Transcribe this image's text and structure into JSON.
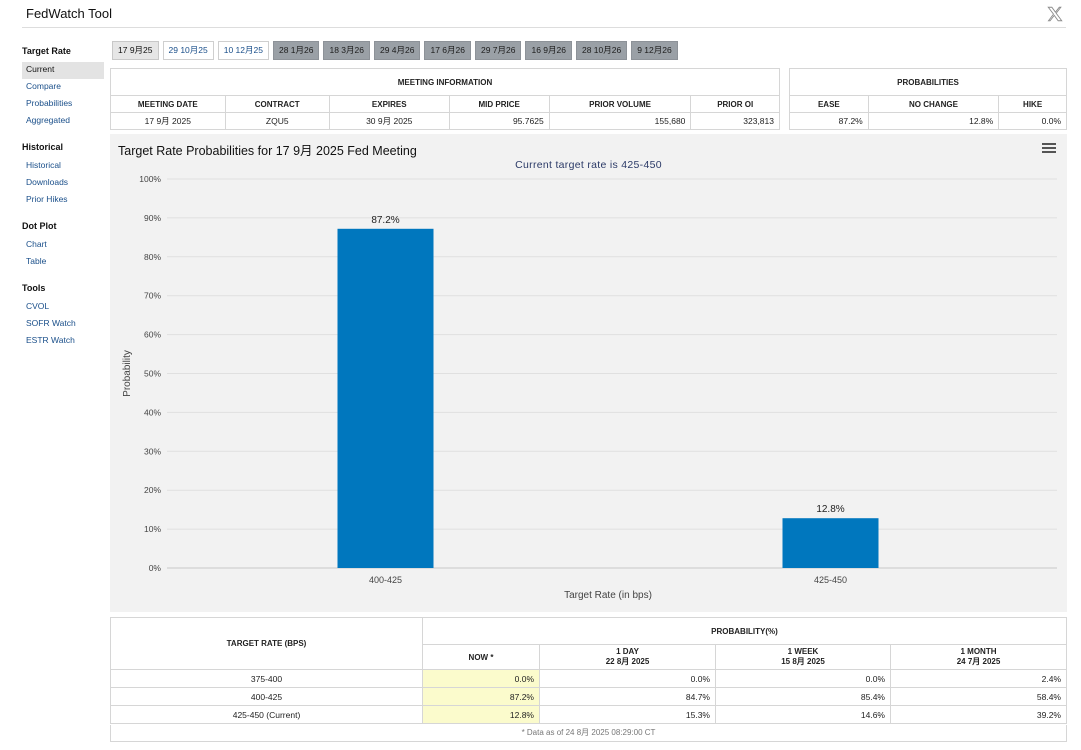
{
  "app": {
    "title": "FedWatch Tool"
  },
  "sidebar": {
    "groups": [
      {
        "heading": "Target Rate",
        "items": [
          "Current",
          "Compare",
          "Probabilities",
          "Aggregated"
        ]
      },
      {
        "heading": "Historical",
        "items": [
          "Historical",
          "Downloads",
          "Prior Hikes"
        ]
      },
      {
        "heading": "Dot Plot",
        "items": [
          "Chart",
          "Table"
        ]
      },
      {
        "heading": "Tools",
        "items": [
          "CVOL",
          "SOFR Watch",
          "ESTR Watch"
        ]
      }
    ],
    "active_item": "Current"
  },
  "meeting_tabs": [
    {
      "label": "17 9月25",
      "state": "selected"
    },
    {
      "label": "29 10月25",
      "state": "open"
    },
    {
      "label": "10 12月25",
      "state": "open"
    },
    {
      "label": "28 1月26",
      "state": "disabled"
    },
    {
      "label": "18 3月26",
      "state": "disabled"
    },
    {
      "label": "29 4月26",
      "state": "disabled"
    },
    {
      "label": "17 6月26",
      "state": "disabled"
    },
    {
      "label": "29 7月26",
      "state": "disabled"
    },
    {
      "label": "16 9月26",
      "state": "disabled"
    },
    {
      "label": "28 10月26",
      "state": "disabled"
    },
    {
      "label": "9 12月26",
      "state": "disabled"
    }
  ],
  "meeting_info": {
    "heading": "MEETING INFORMATION",
    "columns": [
      "MEETING DATE",
      "CONTRACT",
      "EXPIRES",
      "MID PRICE",
      "PRIOR VOLUME",
      "PRIOR OI"
    ],
    "row": [
      "17 9月 2025",
      "ZQU5",
      "30 9月 2025",
      "95.7625",
      "155,680",
      "323,813"
    ]
  },
  "probabilities": {
    "heading": "PROBABILITIES",
    "columns": [
      "EASE",
      "NO CHANGE",
      "HIKE"
    ],
    "row": [
      "87.2%",
      "12.8%",
      "0.0%"
    ]
  },
  "chart": {
    "title": "Target Rate Probabilities for 17 9月 2025 Fed Meeting",
    "subtitle": "Current target rate is 425-450",
    "bar_color": "#0077be"
  },
  "chart_data": {
    "type": "bar",
    "title": "Target Rate Probabilities for 17 9月 2025 Fed Meeting",
    "subtitle": "Current target rate is 425-450",
    "categories": [
      "400-425",
      "425-450"
    ],
    "values": [
      87.2,
      12.8
    ],
    "value_labels": [
      "87.2%",
      "12.8%"
    ],
    "xlabel": "Target Rate (in bps)",
    "ylabel": "Probability",
    "ylim": [
      0,
      100
    ],
    "yticks": [
      "0%",
      "10%",
      "20%",
      "30%",
      "40%",
      "50%",
      "60%",
      "70%",
      "80%",
      "90%",
      "100%"
    ],
    "grid": true,
    "legend": "none"
  },
  "prob_table": {
    "rate_header": "TARGET RATE (BPS)",
    "group_header": "PROBABILITY(%)",
    "columns": [
      {
        "line1": "NOW *",
        "line2": ""
      },
      {
        "line1": "1 DAY",
        "line2": "22 8月 2025"
      },
      {
        "line1": "1 WEEK",
        "line2": "15 8月 2025"
      },
      {
        "line1": "1 MONTH",
        "line2": "24 7月 2025"
      }
    ],
    "rows": [
      {
        "rate": "375-400",
        "values": [
          "0.0%",
          "0.0%",
          "0.0%",
          "2.4%"
        ]
      },
      {
        "rate": "400-425",
        "values": [
          "87.2%",
          "84.7%",
          "85.4%",
          "58.4%"
        ]
      },
      {
        "rate": "425-450 (Current)",
        "values": [
          "12.8%",
          "15.3%",
          "14.6%",
          "39.2%"
        ]
      }
    ],
    "footnote": "* Data as of 24 8月 2025 08:29:00 CT"
  }
}
